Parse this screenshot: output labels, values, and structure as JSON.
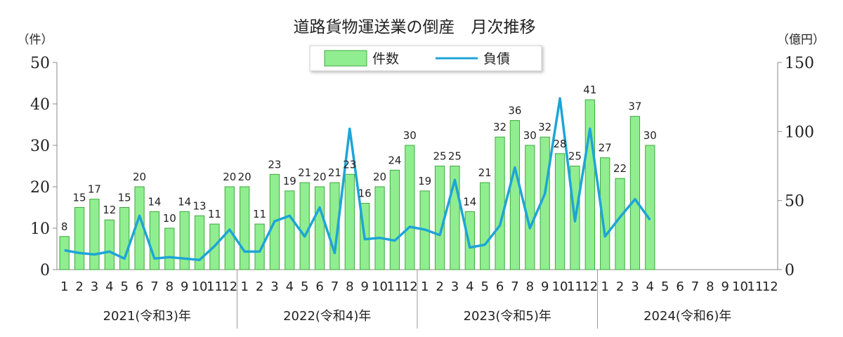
{
  "chart_data": {
    "type": "bar",
    "title": "道路貨物運送業の倒産　月次推移",
    "left_unit": "（件）",
    "right_unit": "（億円）",
    "left_ylim": [
      0,
      50
    ],
    "left_ticks": [
      0,
      10,
      20,
      30,
      40,
      50
    ],
    "right_ylim": [
      0,
      150
    ],
    "right_ticks": [
      0,
      50,
      100,
      150
    ],
    "month_labels": [
      "1",
      "2",
      "3",
      "4",
      "5",
      "6",
      "7",
      "8",
      "9",
      "10",
      "11",
      "12",
      "1",
      "2",
      "3",
      "4",
      "5",
      "6",
      "7",
      "8",
      "9",
      "10",
      "11",
      "12",
      "1",
      "2",
      "3",
      "4",
      "5",
      "6",
      "7",
      "8",
      "9",
      "10",
      "11",
      "12",
      "1",
      "2",
      "3",
      "4",
      "5",
      "6",
      "7",
      "8",
      "9",
      "10",
      "11",
      "12"
    ],
    "year_labels": [
      "2021(令和3)年",
      "2022(令和4)年",
      "2023(令和5)年",
      "2024(令和6)年"
    ],
    "grid": false,
    "legend_position": "top-center",
    "series": [
      {
        "name": "件数",
        "type": "bar",
        "axis": "left",
        "color": "#90ee90",
        "border": "#3fa83f",
        "values": [
          8,
          15,
          17,
          12,
          15,
          20,
          14,
          10,
          14,
          13,
          11,
          20,
          20,
          11,
          23,
          19,
          21,
          20,
          21,
          23,
          16,
          20,
          24,
          30,
          19,
          25,
          25,
          14,
          21,
          32,
          36,
          30,
          32,
          28,
          25,
          41,
          27,
          22,
          37,
          30
        ]
      },
      {
        "name": "負債",
        "type": "line",
        "axis": "right",
        "color": "#1ea5d6",
        "values": [
          14,
          12,
          11,
          13,
          8,
          39,
          8,
          9,
          8,
          7,
          17,
          29,
          13,
          13,
          35,
          39,
          24,
          45,
          12,
          102,
          22,
          23,
          21,
          31,
          29,
          25,
          65,
          16,
          18,
          32,
          74,
          30,
          55,
          124,
          35,
          102,
          24,
          38,
          51,
          36
        ]
      }
    ]
  }
}
